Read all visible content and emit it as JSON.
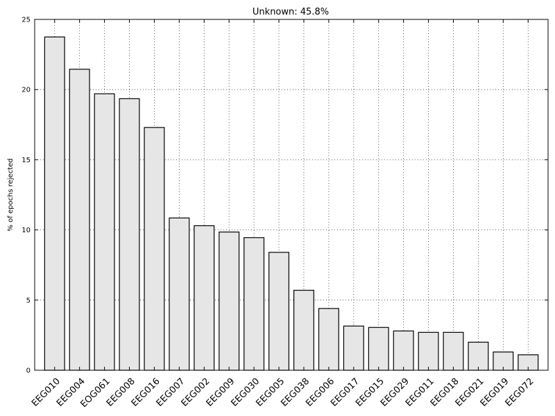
{
  "chart_data": {
    "type": "bar",
    "title": "Unknown: 45.8%",
    "xlabel": "",
    "ylabel": "% of epochs rejected",
    "ylim": [
      0,
      25
    ],
    "yticks": [
      "0",
      "5",
      "10",
      "15",
      "20",
      "25"
    ],
    "grid": true,
    "categories": [
      "EEG010",
      "EEG004",
      "EOG061",
      "EEG008",
      "EEG016",
      "EEG007",
      "EEG002",
      "EEG009",
      "EEG030",
      "EEG005",
      "EEG038",
      "EEG006",
      "EEG017",
      "EEG015",
      "EEG029",
      "EEG011",
      "EEG018",
      "EEG021",
      "EEG019",
      "EEG072"
    ],
    "values": [
      23.75,
      21.45,
      19.7,
      19.35,
      17.3,
      10.85,
      10.3,
      9.85,
      9.45,
      8.4,
      5.7,
      4.4,
      3.15,
      3.05,
      2.8,
      2.7,
      2.7,
      2.0,
      1.3,
      1.1
    ],
    "bar_color": "#e6e6e6",
    "edge_color": "#000000"
  }
}
